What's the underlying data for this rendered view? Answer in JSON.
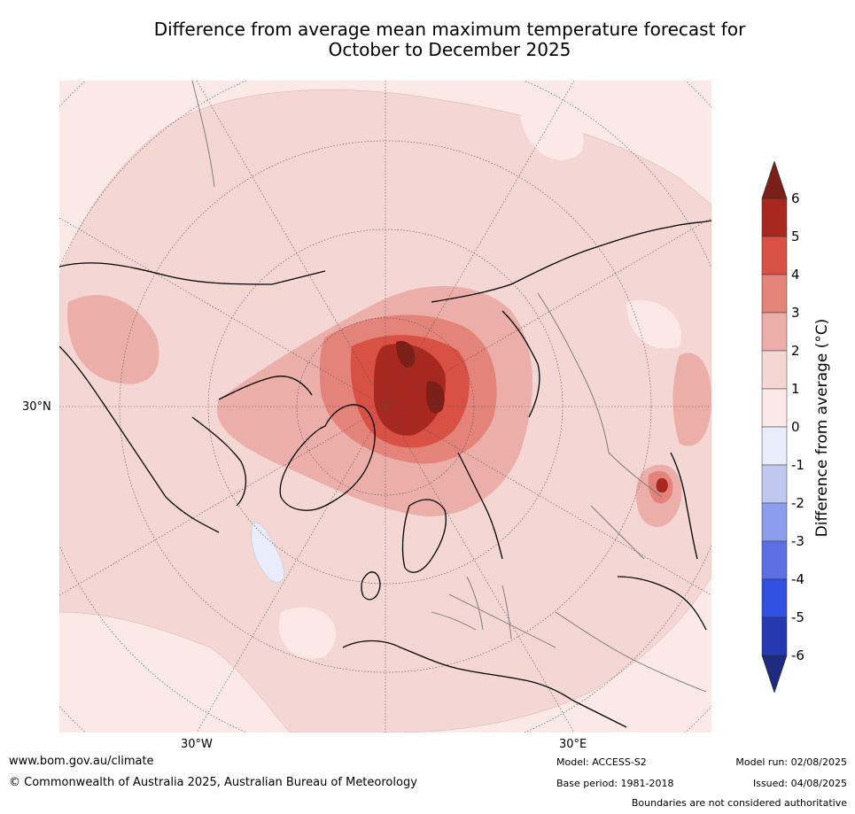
{
  "header": {
    "title_line1": "Difference from average mean maximum temperature forecast for",
    "title_line2": "October to December 2025"
  },
  "map": {
    "projection": "north polar stereographic",
    "lat_label": "30°N",
    "lon_label_west": "30°W",
    "lon_label_east": "30°E",
    "colors": {
      "ocean_base": "#fbe9e7",
      "anomaly_1_2": "#f4d6d3",
      "anomaly_2_3": "#ebaea9",
      "anomaly_3_4": "#e38379",
      "anomaly_4_5": "#d95045",
      "anomaly_5_6": "#a8271f",
      "anomaly_gt6": "#7b1f19",
      "anomaly_neg1_0": "#e8ecfb"
    }
  },
  "colorbar": {
    "label": "Difference from average (°C)",
    "ticks": [
      "6",
      "5",
      "4",
      "3",
      "2",
      "1",
      "0",
      "-1",
      "-2",
      "-3",
      "-4",
      "-5",
      "-6"
    ],
    "colors": [
      "#a8271f",
      "#d95045",
      "#e38379",
      "#ebaea9",
      "#f4d6d3",
      "#fbe9e7",
      "#e8ecfb",
      "#c0c8f0",
      "#8d9ded",
      "#5a70e3",
      "#2f50e0",
      "#253ab0"
    ],
    "top_arrow_color": "#7b1f19",
    "bottom_arrow_color": "#1e2a80"
  },
  "footer": {
    "website": "www.bom.gov.au/climate",
    "copyright": "© Commonwealth of Australia 2025, Australian Bureau of Meteorology",
    "model": "Model: ACCESS-S2",
    "base_period": "Base period: 1981-2018",
    "model_run": "Model run: 02/08/2025",
    "issued": "Issued: 04/08/2025",
    "disclaimer": "Boundaries are not considered authoritative"
  }
}
